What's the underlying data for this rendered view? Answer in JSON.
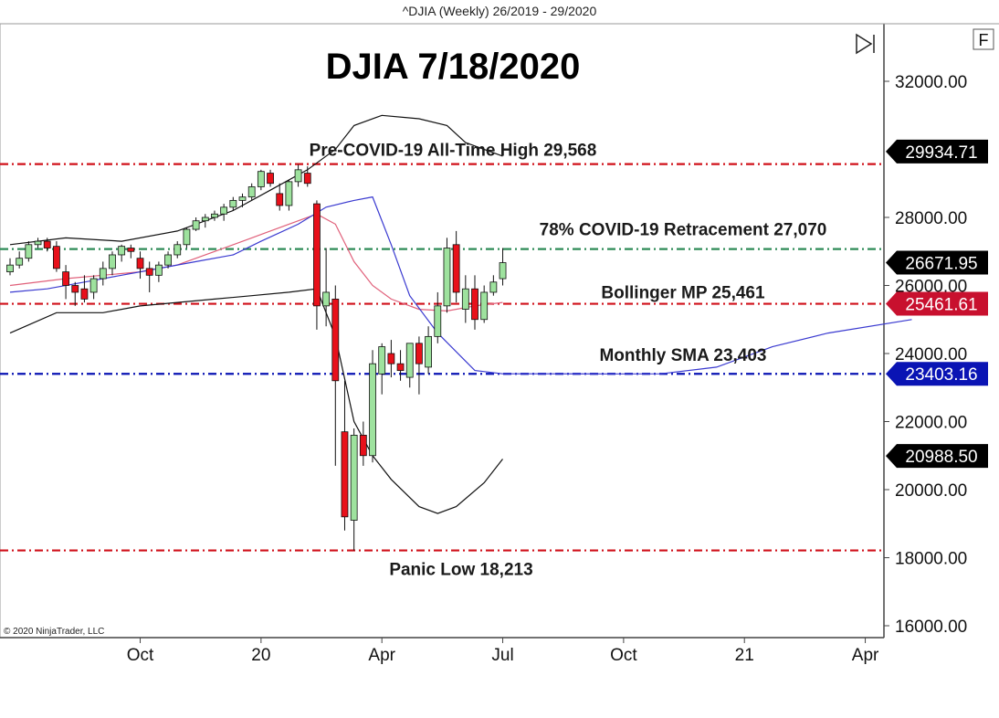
{
  "header": {
    "title": "^DJIA (Weekly)  26/2019 - 29/2020"
  },
  "toolbar": {
    "f_label": "F",
    "play_icon": "skip-to-end-icon"
  },
  "copyright": "© 2020 NinjaTrader, LLC",
  "chart_data": {
    "type": "candlestick",
    "title": "DJIA 7/18/2020",
    "ylim": [
      15700,
      33200
    ],
    "y_ticks": [
      "32000.00",
      "28000.00",
      "26000.00",
      "24000.00",
      "22000.00",
      "20000.00",
      "18000.00",
      "16000.00"
    ],
    "y_tick_values": [
      32000,
      28000,
      26000,
      24000,
      22000,
      20000,
      18000,
      16000
    ],
    "x_ticks": [
      {
        "label": "Oct",
        "week": 14
      },
      {
        "label": "20",
        "week": 27
      },
      {
        "label": "Apr",
        "week": 40
      },
      {
        "label": "Jul",
        "week": 53
      },
      {
        "label": "Oct",
        "week": 66
      },
      {
        "label": "21",
        "week": 79
      },
      {
        "label": "Apr",
        "week": 92
      }
    ],
    "x_range_weeks": [
      0,
      97
    ],
    "levels": [
      {
        "name": "pre-covid-high",
        "label": "Pre-COVID-19 All-Time High 29,568",
        "value": 29568,
        "color": "#d0101a"
      },
      {
        "name": "covid-retracement",
        "label": "78% COVID-19 Retracement 27,070",
        "value": 27070,
        "color": "#2e8b57"
      },
      {
        "name": "bollinger-mp",
        "label": "Bollinger MP 25,461",
        "value": 25461,
        "color": "#d0101a"
      },
      {
        "name": "monthly-sma",
        "label": "Monthly SMA 23,403",
        "value": 23403,
        "color": "#0a14b4"
      },
      {
        "name": "panic-low",
        "label": "Panic Low 18,213",
        "value": 18213,
        "color": "#d0101a"
      }
    ],
    "price_badges": [
      {
        "name": "badge-29934",
        "text": "29934.71",
        "value": 29934.71,
        "color": "#000000"
      },
      {
        "name": "badge-26671",
        "text": "26671.95",
        "value": 26671.95,
        "color": "#000000"
      },
      {
        "name": "badge-25461",
        "text": "25461.61",
        "value": 25461.61,
        "color": "#c8102e"
      },
      {
        "name": "badge-23403",
        "text": "23403.16",
        "value": 23403.16,
        "color": "#0a14b4"
      },
      {
        "name": "badge-20988",
        "text": "20988.50",
        "value": 20988.5,
        "color": "#000000"
      }
    ],
    "candles": [
      {
        "o": 26400,
        "h": 26800,
        "l": 26300,
        "c": 26600
      },
      {
        "o": 26600,
        "h": 27000,
        "l": 26500,
        "c": 26800
      },
      {
        "o": 26800,
        "h": 27300,
        "l": 26700,
        "c": 27200
      },
      {
        "o": 27200,
        "h": 27400,
        "l": 27100,
        "c": 27300
      },
      {
        "o": 27300,
        "h": 27400,
        "l": 27000,
        "c": 27100
      },
      {
        "o": 27150,
        "h": 27300,
        "l": 26400,
        "c": 26500
      },
      {
        "o": 26400,
        "h": 26600,
        "l": 25600,
        "c": 26000
      },
      {
        "o": 26000,
        "h": 26100,
        "l": 25400,
        "c": 25800
      },
      {
        "o": 25900,
        "h": 26300,
        "l": 25500,
        "c": 25600
      },
      {
        "o": 25800,
        "h": 26300,
        "l": 25600,
        "c": 26200
      },
      {
        "o": 26200,
        "h": 26700,
        "l": 26000,
        "c": 26500
      },
      {
        "o": 26500,
        "h": 27000,
        "l": 26300,
        "c": 26900
      },
      {
        "o": 26900,
        "h": 27200,
        "l": 26700,
        "c": 27150
      },
      {
        "o": 27100,
        "h": 27200,
        "l": 26800,
        "c": 27000
      },
      {
        "o": 26800,
        "h": 27000,
        "l": 26200,
        "c": 26500
      },
      {
        "o": 26500,
        "h": 26700,
        "l": 25800,
        "c": 26300
      },
      {
        "o": 26300,
        "h": 26700,
        "l": 26100,
        "c": 26600
      },
      {
        "o": 26600,
        "h": 27000,
        "l": 26500,
        "c": 26900
      },
      {
        "o": 26900,
        "h": 27300,
        "l": 26800,
        "c": 27200
      },
      {
        "o": 27200,
        "h": 27700,
        "l": 27100,
        "c": 27650
      },
      {
        "o": 27650,
        "h": 28000,
        "l": 27600,
        "c": 27900
      },
      {
        "o": 27900,
        "h": 28100,
        "l": 27700,
        "c": 28000
      },
      {
        "o": 28000,
        "h": 28200,
        "l": 27900,
        "c": 28100
      },
      {
        "o": 28100,
        "h": 28400,
        "l": 27900,
        "c": 28300
      },
      {
        "o": 28300,
        "h": 28600,
        "l": 28200,
        "c": 28500
      },
      {
        "o": 28500,
        "h": 28700,
        "l": 28300,
        "c": 28600
      },
      {
        "o": 28600,
        "h": 29000,
        "l": 28500,
        "c": 28900
      },
      {
        "o": 28900,
        "h": 29400,
        "l": 28800,
        "c": 29350
      },
      {
        "o": 29300,
        "h": 29400,
        "l": 28900,
        "c": 29000
      },
      {
        "o": 28700,
        "h": 29000,
        "l": 28200,
        "c": 28350
      },
      {
        "o": 28350,
        "h": 29100,
        "l": 28200,
        "c": 29050
      },
      {
        "o": 29050,
        "h": 29550,
        "l": 28900,
        "c": 29400
      },
      {
        "o": 29300,
        "h": 29500,
        "l": 28900,
        "c": 29000
      },
      {
        "o": 28400,
        "h": 28500,
        "l": 24700,
        "c": 25400
      },
      {
        "o": 25400,
        "h": 27100,
        "l": 24800,
        "c": 25800
      },
      {
        "o": 25600,
        "h": 26000,
        "l": 20700,
        "c": 23200
      },
      {
        "o": 21700,
        "h": 23200,
        "l": 18800,
        "c": 19200
      },
      {
        "o": 19100,
        "h": 21800,
        "l": 18213,
        "c": 21600
      },
      {
        "o": 21600,
        "h": 22000,
        "l": 20700,
        "c": 21000
      },
      {
        "o": 21000,
        "h": 24100,
        "l": 20800,
        "c": 23700
      },
      {
        "o": 23400,
        "h": 24300,
        "l": 22800,
        "c": 24200
      },
      {
        "o": 24000,
        "h": 24400,
        "l": 23300,
        "c": 23700
      },
      {
        "o": 23700,
        "h": 24100,
        "l": 23200,
        "c": 23500
      },
      {
        "o": 23300,
        "h": 24300,
        "l": 23000,
        "c": 24300
      },
      {
        "o": 24300,
        "h": 24500,
        "l": 22800,
        "c": 23700
      },
      {
        "o": 23600,
        "h": 24800,
        "l": 23400,
        "c": 24500
      },
      {
        "o": 24500,
        "h": 25800,
        "l": 24300,
        "c": 25400
      },
      {
        "o": 25400,
        "h": 27400,
        "l": 25200,
        "c": 27100
      },
      {
        "o": 27200,
        "h": 27600,
        "l": 25500,
        "c": 25800
      },
      {
        "o": 25300,
        "h": 26300,
        "l": 24900,
        "c": 25900
      },
      {
        "o": 25900,
        "h": 26300,
        "l": 24700,
        "c": 25000
      },
      {
        "o": 25000,
        "h": 26000,
        "l": 24900,
        "c": 25800
      },
      {
        "o": 25800,
        "h": 26300,
        "l": 25700,
        "c": 26100
      },
      {
        "o": 26200,
        "h": 27100,
        "l": 26000,
        "c": 26670
      }
    ],
    "series": [
      {
        "name": "bollinger-upper",
        "color": "#111111",
        "points": [
          [
            0,
            27200
          ],
          [
            6,
            27400
          ],
          [
            12,
            27300
          ],
          [
            18,
            27600
          ],
          [
            24,
            28200
          ],
          [
            28,
            28800
          ],
          [
            32,
            29400
          ],
          [
            35,
            30000
          ],
          [
            37,
            30700
          ],
          [
            40,
            31000
          ],
          [
            44,
            30900
          ],
          [
            47,
            30700
          ],
          [
            49,
            30200
          ],
          [
            53,
            29800
          ]
        ]
      },
      {
        "name": "bollinger-middle",
        "color": "#e0607a",
        "points": [
          [
            0,
            26000
          ],
          [
            6,
            26200
          ],
          [
            10,
            26300
          ],
          [
            14,
            26400
          ],
          [
            18,
            26600
          ],
          [
            22,
            27000
          ],
          [
            26,
            27400
          ],
          [
            30,
            27800
          ],
          [
            33,
            28100
          ],
          [
            35,
            27800
          ],
          [
            37,
            26700
          ],
          [
            39,
            26000
          ],
          [
            41,
            25600
          ],
          [
            44,
            25300
          ],
          [
            47,
            25250
          ],
          [
            50,
            25400
          ],
          [
            53,
            25500
          ]
        ]
      },
      {
        "name": "bollinger-lower",
        "color": "#111111",
        "points": [
          [
            0,
            24600
          ],
          [
            5,
            25200
          ],
          [
            10,
            25200
          ],
          [
            14,
            25400
          ],
          [
            18,
            25500
          ],
          [
            22,
            25600
          ],
          [
            26,
            25700
          ],
          [
            30,
            25800
          ],
          [
            33,
            25900
          ],
          [
            35,
            24500
          ],
          [
            37,
            22000
          ],
          [
            39,
            21000
          ],
          [
            41,
            20300
          ],
          [
            44,
            19500
          ],
          [
            46,
            19300
          ],
          [
            48,
            19500
          ],
          [
            51,
            20200
          ],
          [
            53,
            20900
          ]
        ]
      },
      {
        "name": "monthly-sma",
        "color": "#3a3ad0",
        "points": [
          [
            0,
            25800
          ],
          [
            4,
            25900
          ],
          [
            8,
            26100
          ],
          [
            12,
            26300
          ],
          [
            16,
            26500
          ],
          [
            20,
            26700
          ],
          [
            24,
            26900
          ],
          [
            27,
            27300
          ],
          [
            31,
            27800
          ],
          [
            34,
            28300
          ],
          [
            37,
            28500
          ],
          [
            39,
            28600
          ],
          [
            41,
            27200
          ],
          [
            43,
            25700
          ],
          [
            46,
            24600
          ],
          [
            50,
            23500
          ],
          [
            53,
            23403
          ],
          [
            58,
            23403
          ],
          [
            64,
            23400
          ],
          [
            70,
            23403
          ],
          [
            76,
            23600
          ],
          [
            82,
            24200
          ],
          [
            88,
            24600
          ],
          [
            97,
            25000
          ]
        ]
      }
    ]
  }
}
